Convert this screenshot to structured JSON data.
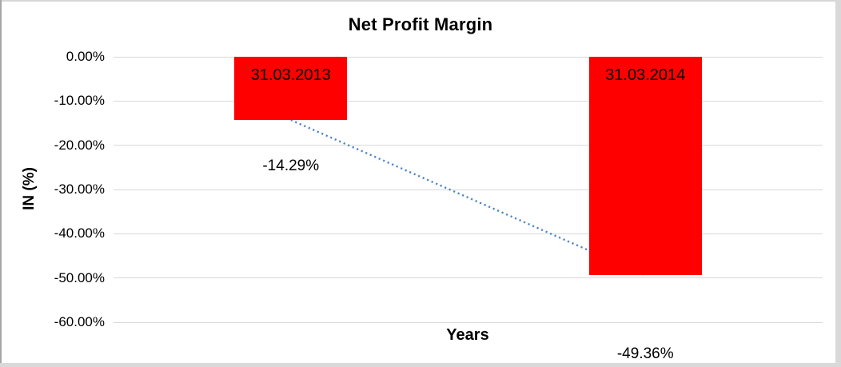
{
  "chart_data": {
    "type": "bar",
    "title": "Net Profit Margin",
    "xlabel": "Years",
    "ylabel": "IN (%)",
    "categories": [
      "31.03.2013",
      "31.03.2014"
    ],
    "values": [
      -14.29,
      -49.36
    ],
    "value_labels": [
      "-14.29%",
      "-49.36%"
    ],
    "ytick_labels": [
      "0.00%",
      "-10.00%",
      "-20.00%",
      "-30.00%",
      "-40.00%",
      "-50.00%",
      "-60.00%"
    ],
    "ytick_values": [
      0,
      -10,
      -20,
      -30,
      -40,
      -50,
      -60
    ],
    "ylim": [
      -60,
      0
    ],
    "grid": true,
    "legend": false,
    "bar_color": "#ff0000",
    "category_label_color": "#000000",
    "gridline_color": "#d9d9d9",
    "trendline": {
      "type": "linear",
      "style": "dotted",
      "color": "#4d86c6",
      "from_value": -14.29,
      "to_value": -49.36
    }
  }
}
